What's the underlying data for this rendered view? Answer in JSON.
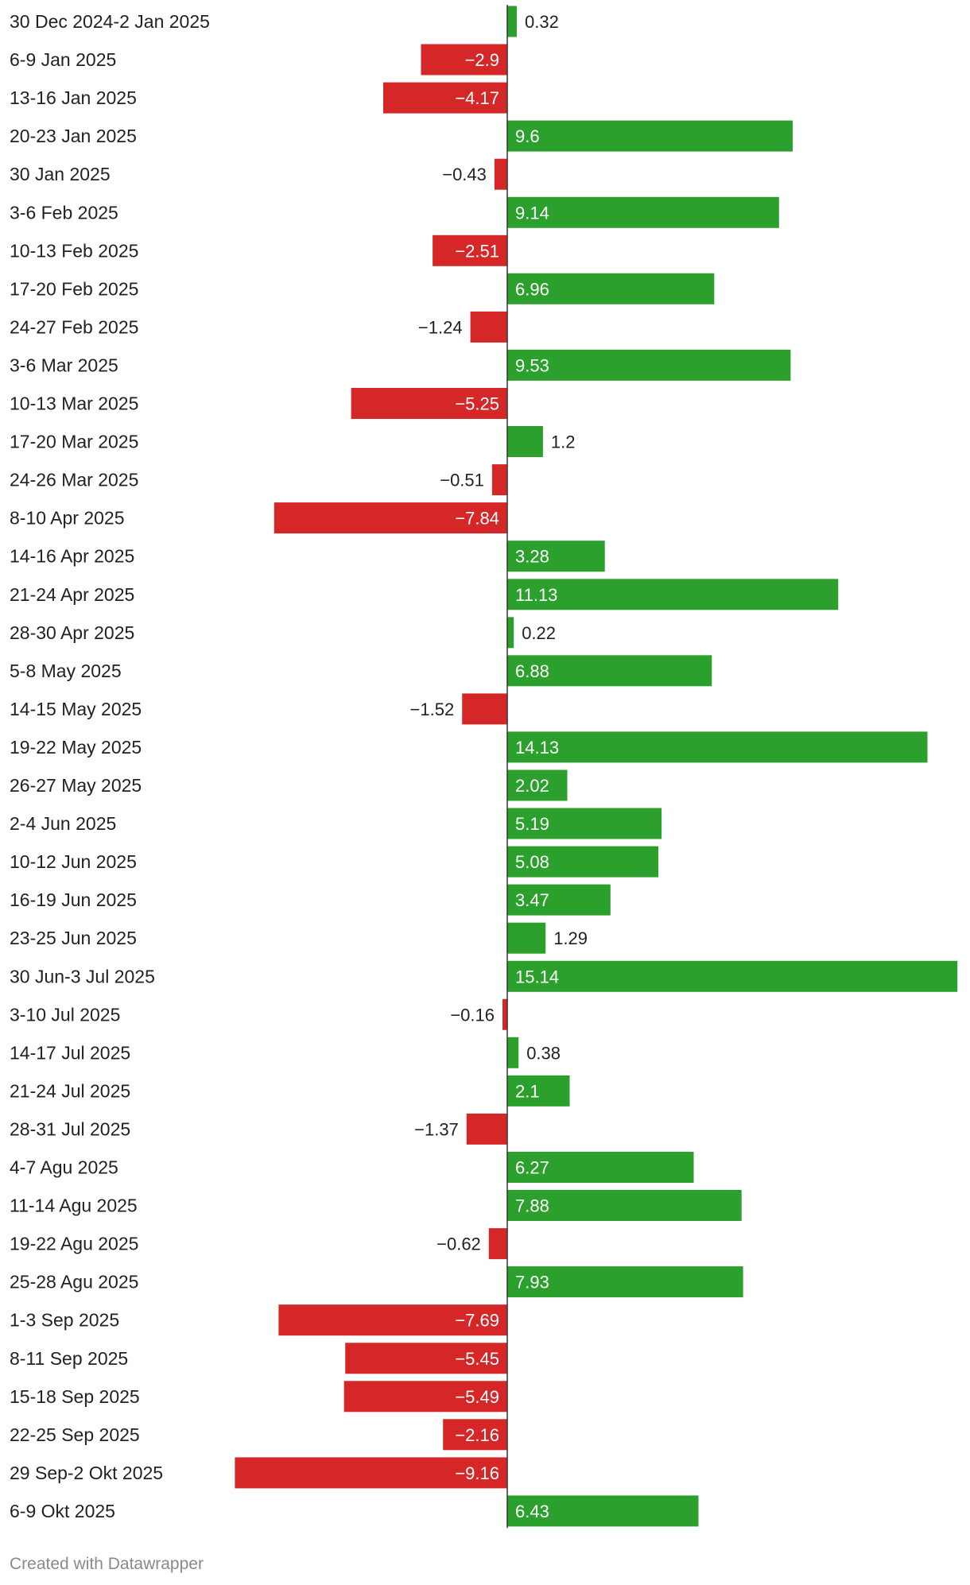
{
  "chart_data": {
    "type": "bar",
    "orientation": "horizontal",
    "categories": [
      "30 Dec 2024-2 Jan 2025",
      "6-9 Jan 2025",
      "13-16 Jan 2025",
      "20-23 Jan 2025",
      "30 Jan 2025",
      "3-6 Feb 2025",
      "10-13 Feb 2025",
      "17-20 Feb 2025",
      "24-27 Feb 2025",
      "3-6 Mar 2025",
      "10-13 Mar 2025",
      "17-20 Mar 2025",
      "24-26 Mar 2025",
      "8-10 Apr 2025",
      "14-16 Apr 2025",
      "21-24 Apr 2025",
      "28-30 Apr 2025",
      "5-8 May 2025",
      "14-15 May 2025",
      "19-22 May 2025",
      "26-27 May 2025",
      "2-4 Jun 2025",
      "10-12 Jun 2025",
      "16-19 Jun 2025",
      "23-25 Jun 2025",
      "30 Jun-3 Jul 2025",
      "3-10 Jul 2025",
      "14-17 Jul 2025",
      "21-24 Jul 2025",
      "28-31 Jul 2025",
      "4-7 Agu 2025",
      "11-14 Agu 2025",
      "19-22 Agu 2025",
      "25-28 Agu 2025",
      "1-3 Sep 2025",
      "8-11 Sep 2025",
      "15-18 Sep 2025",
      "22-25 Sep 2025",
      "29 Sep-2 Okt 2025",
      "6-9 Okt 2025"
    ],
    "values": [
      0.32,
      -2.9,
      -4.17,
      9.6,
      -0.43,
      9.14,
      -2.51,
      6.96,
      -1.24,
      9.53,
      -5.25,
      1.2,
      -0.51,
      -7.84,
      3.28,
      11.13,
      0.22,
      6.88,
      -1.52,
      14.13,
      2.02,
      5.19,
      5.08,
      3.47,
      1.29,
      15.14,
      -0.16,
      0.38,
      2.1,
      -1.37,
      6.27,
      7.88,
      -0.62,
      7.93,
      -7.69,
      -5.45,
      -5.49,
      -2.16,
      -9.16,
      6.43
    ],
    "value_labels": [
      "0.32",
      "−2.9",
      "−4.17",
      "9.6",
      "−0.43",
      "9.14",
      "−2.51",
      "6.96",
      "−1.24",
      "9.53",
      "−5.25",
      "1.2",
      "−0.51",
      "−7.84",
      "3.28",
      "11.13",
      "0.22",
      "6.88",
      "−1.52",
      "14.13",
      "2.02",
      "5.19",
      "5.08",
      "3.47",
      "1.29",
      "15.14",
      "−0.16",
      "0.38",
      "2.1",
      "−1.37",
      "6.27",
      "7.88",
      "−0.62",
      "7.93",
      "−7.69",
      "−5.45",
      "−5.49",
      "−2.16",
      "−9.16",
      "6.43"
    ],
    "xlim": [
      -17,
      15.14
    ],
    "grid": false,
    "legend": "none",
    "colors": {
      "positive": "#2ca02c",
      "negative": "#d62728",
      "axis": "#333333",
      "label": "#222222"
    }
  },
  "footer": {
    "credit": "Created with Datawrapper"
  }
}
